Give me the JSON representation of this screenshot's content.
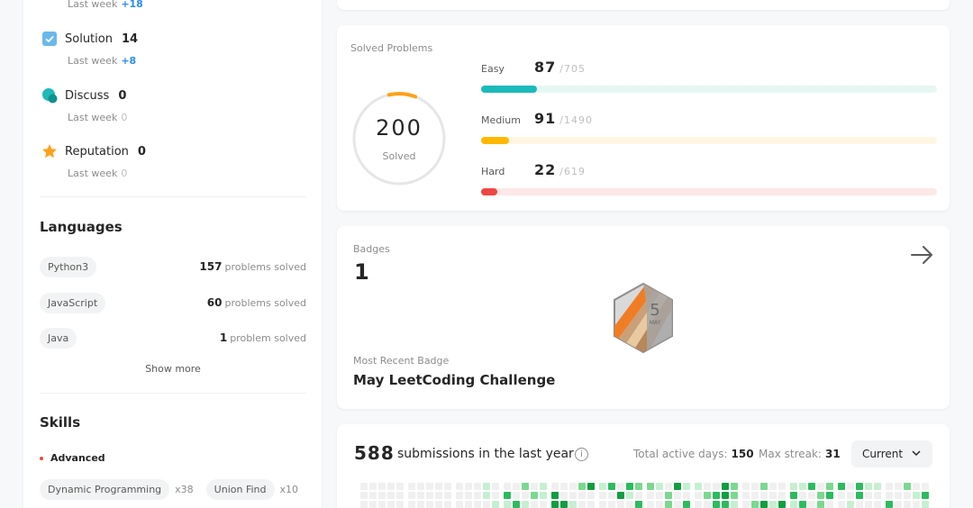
{
  "stats": {
    "views_lastweek_label": "Last week",
    "views_lastweek_delta": "+18",
    "solution_label": "Solution",
    "solution_value": "14",
    "solution_lastweek_label": "Last week",
    "solution_lastweek_delta": "+8",
    "discuss_label": "Discuss",
    "discuss_value": "0",
    "discuss_lastweek_label": "Last week",
    "discuss_lastweek_delta": "0",
    "reputation_label": "Reputation",
    "reputation_value": "0",
    "reputation_lastweek_label": "Last week",
    "reputation_lastweek_delta": "0"
  },
  "languages": {
    "title": "Languages",
    "items": [
      {
        "name": "Python3",
        "count": "157",
        "unit": "problems solved"
      },
      {
        "name": "JavaScript",
        "count": "60",
        "unit": "problems solved"
      },
      {
        "name": "Java",
        "count": "1",
        "unit": "problem solved"
      }
    ],
    "show_more": "Show more"
  },
  "skills": {
    "title": "Skills",
    "level": "Advanced",
    "items": [
      {
        "name": "Dynamic Programming",
        "count": "x38"
      },
      {
        "name": "Union Find",
        "count": "x10"
      }
    ]
  },
  "solved": {
    "title": "Solved Problems",
    "total": "200",
    "total_label": "Solved",
    "easy": {
      "label": "Easy",
      "solved": "87",
      "total": "/705",
      "fraction": 0.123,
      "color": "#1cbaba",
      "track": "#e6f7f3"
    },
    "medium": {
      "label": "Medium",
      "solved": "91",
      "total": "/1490",
      "fraction": 0.061,
      "color": "#ffb800",
      "track": "#fff6e1"
    },
    "hard": {
      "label": "Hard",
      "solved": "22",
      "total": "/619",
      "fraction": 0.036,
      "color": "#ef4743",
      "track": "#fde7e7"
    }
  },
  "badges": {
    "title": "Badges",
    "count": "1",
    "badge_icon": "may-challenge-badge-icon",
    "badge_number": "5",
    "badge_month": "MAY",
    "recent_label": "Most Recent Badge",
    "recent_name": "May LeetCoding Challenge"
  },
  "submissions": {
    "count": "588",
    "text": "submissions in the last year",
    "active_days_label": "Total active days:",
    "active_days": "150",
    "max_streak_label": "Max streak:",
    "max_streak": "31",
    "period": "Current"
  },
  "colors": {
    "accent_blue": "#2d8cf0",
    "teal": "#1cbaba",
    "orange": "#ffa116",
    "green_dark": "#2cbb5d",
    "green_light": "#a6e9b8"
  }
}
